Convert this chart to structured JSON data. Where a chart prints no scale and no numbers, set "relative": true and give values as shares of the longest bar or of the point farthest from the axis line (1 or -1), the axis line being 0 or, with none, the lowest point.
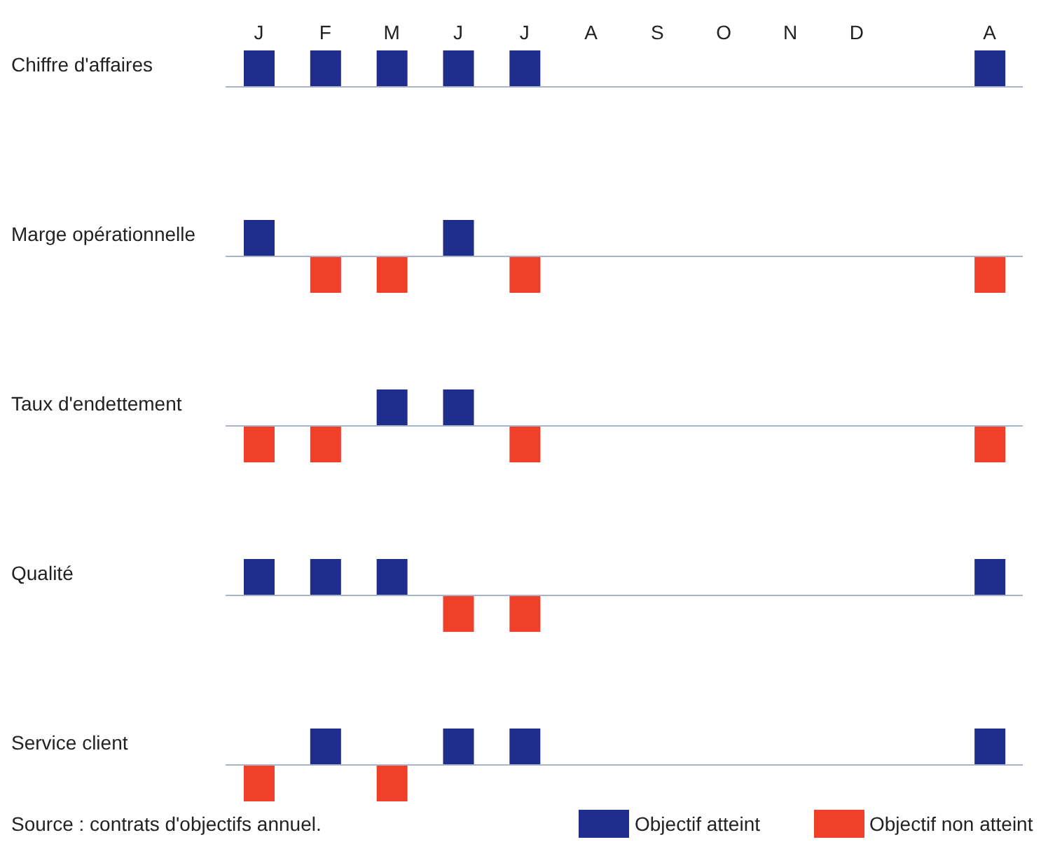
{
  "chart_data": [
    {
      "type": "bar",
      "relative": true,
      "stacked": true,
      "ylabel": "Chiffre d'affaires",
      "categories": [
        "J",
        "F",
        "M",
        "J",
        "J",
        "A",
        "S",
        "O",
        "N",
        "D",
        null,
        "A"
      ],
      "tick_labels": "x",
      "legend": false,
      "series": [
        {
          "color": "#1f2d8c",
          "values": [
            1,
            1,
            1,
            1,
            1,
            null,
            null,
            null,
            null,
            null,
            null,
            1
          ]
        },
        {
          "color": "#f0402a",
          "values": [
            null,
            null,
            null,
            null,
            null,
            null,
            null,
            null,
            null,
            null,
            null,
            null
          ]
        }
      ]
    },
    {
      "type": "bar",
      "relative": true,
      "stacked": true,
      "ylabel": "Marge opérationnelle",
      "categories": [
        null,
        null,
        null,
        null,
        null,
        null,
        null,
        null,
        null,
        null,
        null,
        null
      ],
      "tick_labels": false,
      "legend": false,
      "series": [
        {
          "color": "#1f2d8c",
          "values": [
            1,
            null,
            null,
            1,
            null,
            null,
            null,
            null,
            null,
            null,
            null,
            null
          ]
        },
        {
          "color": "#f0402a",
          "values": [
            null,
            -1,
            -1,
            null,
            -1,
            null,
            null,
            null,
            null,
            null,
            null,
            -1
          ]
        }
      ]
    },
    {
      "type": "bar",
      "relative": true,
      "stacked": true,
      "ylabel": "Taux d'endettement",
      "categories": [
        null,
        null,
        null,
        null,
        null,
        null,
        null,
        null,
        null,
        null,
        null,
        null
      ],
      "tick_labels": false,
      "legend": false,
      "series": [
        {
          "color": "#1f2d8c",
          "values": [
            null,
            null,
            1,
            1,
            null,
            null,
            null,
            null,
            null,
            null,
            null,
            null
          ]
        },
        {
          "color": "#f0402a",
          "values": [
            -1,
            -1,
            null,
            null,
            -1,
            null,
            null,
            null,
            null,
            null,
            null,
            -1
          ]
        }
      ]
    },
    {
      "type": "bar",
      "relative": true,
      "stacked": true,
      "ylabel": "Qualité",
      "categories": [
        null,
        null,
        null,
        null,
        null,
        null,
        null,
        null,
        null,
        null,
        null,
        null
      ],
      "tick_labels": false,
      "legend": false,
      "series": [
        {
          "color": "#1f2d8c",
          "values": [
            1,
            1,
            1,
            null,
            null,
            null,
            null,
            null,
            null,
            null,
            null,
            1
          ]
        },
        {
          "color": "#f0402a",
          "values": [
            null,
            null,
            null,
            -1,
            -1,
            null,
            null,
            null,
            null,
            null,
            null,
            null
          ]
        }
      ]
    },
    {
      "type": "bar",
      "relative": true,
      "stacked": true,
      "ylabel": "Service client",
      "categories": [
        null,
        null,
        null,
        null,
        null,
        null,
        null,
        null,
        null,
        null,
        null,
        null
      ],
      "tick_labels": false,
      "legend": "bottom",
      "annotations": [
        "Source : contrats d'objectifs annuel."
      ],
      "series": [
        {
          "name": "Objectif atteint",
          "color": "#1f2d8c",
          "values": [
            null,
            1,
            null,
            1,
            1,
            null,
            null,
            null,
            null,
            null,
            null,
            1
          ]
        },
        {
          "name": "Objectif non atteint",
          "color": "#f0402a",
          "values": [
            -1,
            null,
            -1,
            null,
            null,
            null,
            null,
            null,
            null,
            null,
            null,
            null
          ]
        }
      ]
    }
  ]
}
